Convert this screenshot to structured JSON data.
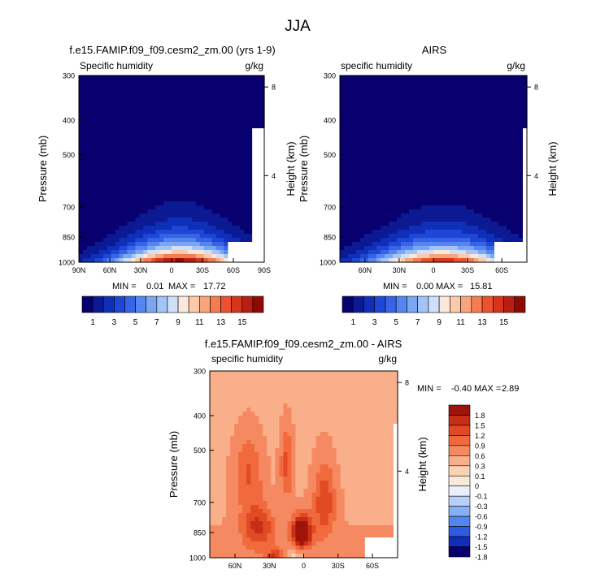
{
  "figure": {
    "title": "JJA"
  },
  "palette": {
    "humidity": [
      "#08006e",
      "#0b1a92",
      "#0f2fb8",
      "#1f47d6",
      "#3663e8",
      "#5585f0",
      "#7ba6f4",
      "#a3c4f7",
      "#cfe0fa",
      "#fae8da",
      "#fccaa8",
      "#f9a57c",
      "#f57b53",
      "#ec5230",
      "#d6341d",
      "#b81f12",
      "#8c0c05"
    ],
    "difference": [
      "#08006e",
      "#0f2fb8",
      "#2f5be2",
      "#5585f0",
      "#86aff4",
      "#b8d0f8",
      "#e8f0fc",
      "#fae8da",
      "#fcd2b5",
      "#f9b08a",
      "#f58a62",
      "#f06a3d",
      "#e14a22",
      "#c62e15",
      "#9e130a"
    ],
    "missing": "#ffffff"
  },
  "chart_data": [
    {
      "type": "heatmap",
      "title": "f.e15.FAMIP.f09_f09.cesm2_zm.00 (yrs 1-9)",
      "left_label": "Specific humidity",
      "right_label": "g/kg",
      "ylabel": "Pressure (mb)",
      "ylabel_right": "Height (km)",
      "x_ticks": [
        "90N",
        "60N",
        "30N",
        "0",
        "30S",
        "60S",
        "90S"
      ],
      "x_tick_values": [
        90,
        60,
        30,
        0,
        -30,
        -60,
        -90
      ],
      "xlim": [
        90,
        -90
      ],
      "y_ticks": [
        300,
        400,
        500,
        700,
        850,
        1000
      ],
      "ylim": [
        1000,
        300
      ],
      "y_scale": "log",
      "height_ticks": [
        8,
        4
      ],
      "stats": {
        "min_label": "MIN =",
        "min": "0.01",
        "max_label": "MAX =",
        "max": "17.72"
      },
      "peak": {
        "lat": -8,
        "value": 17.72
      },
      "colorbar_labels": [
        "1",
        "3",
        "5",
        "7",
        "9",
        "11",
        "13",
        "15"
      ],
      "contour_levels": [
        0,
        1,
        2,
        3,
        4,
        5,
        6,
        7,
        8,
        9,
        10,
        11,
        12,
        13,
        14,
        15,
        16
      ]
    },
    {
      "type": "heatmap",
      "title": "AIRS",
      "left_label": "specific humidity",
      "right_label": "g/kg",
      "ylabel": "Pressure (mb)",
      "ylabel_right": "Height (km)",
      "x_ticks": [
        "60N",
        "30N",
        "0",
        "30S",
        "60S"
      ],
      "x_tick_values": [
        60,
        30,
        0,
        -30,
        -60
      ],
      "xlim": [
        82,
        -82
      ],
      "y_ticks": [
        300,
        400,
        500,
        700,
        850,
        1000
      ],
      "ylim": [
        1000,
        300
      ],
      "y_scale": "log",
      "height_ticks": [
        8,
        4
      ],
      "stats": {
        "min_label": "MIN =",
        "min": "0.00",
        "max_label": "MAX =",
        "max": "15.81"
      },
      "peak": {
        "lat": -8,
        "value": 15.81
      },
      "colorbar_labels": [
        "1",
        "3",
        "5",
        "7",
        "9",
        "11",
        "13",
        "15"
      ],
      "contour_levels": [
        0,
        1,
        2,
        3,
        4,
        5,
        6,
        7,
        8,
        9,
        10,
        11,
        12,
        13,
        14,
        15,
        16
      ]
    },
    {
      "type": "heatmap",
      "title": "f.e15.FAMIP.f09_f09.cesm2_zm.00 - AIRS",
      "left_label": "specific humidity",
      "right_label": "g/kg",
      "ylabel": "Pressure (mb)",
      "ylabel_right": "Height (km)",
      "x_ticks": [
        "60N",
        "30N",
        "0",
        "30S",
        "60S"
      ],
      "x_tick_values": [
        60,
        30,
        0,
        -30,
        -60
      ],
      "xlim": [
        82,
        -82
      ],
      "y_ticks": [
        300,
        400,
        500,
        700,
        850,
        1000
      ],
      "ylim": [
        1000,
        300
      ],
      "y_scale": "log",
      "height_ticks": [
        8,
        4
      ],
      "stats": {
        "min_label": "MIN =",
        "min": "-0.40",
        "max_label": "MAX =",
        "max": "2.89"
      },
      "peak": {
        "lat": 2,
        "pressure": 850,
        "value": 2.89
      },
      "colorbar_labels": [
        "1.8",
        "1.5",
        "1.2",
        "0.9",
        "0.6",
        "0.3",
        "0.1",
        "0",
        "-0.1",
        "-0.3",
        "-0.6",
        "-0.9",
        "-1.2",
        "-1.5",
        "-1.8"
      ],
      "contour_levels": [
        -1.8,
        -1.5,
        -1.2,
        -0.9,
        -0.6,
        -0.3,
        -0.1,
        0,
        0.1,
        0.3,
        0.6,
        0.9,
        1.2,
        1.5,
        1.8
      ]
    }
  ]
}
